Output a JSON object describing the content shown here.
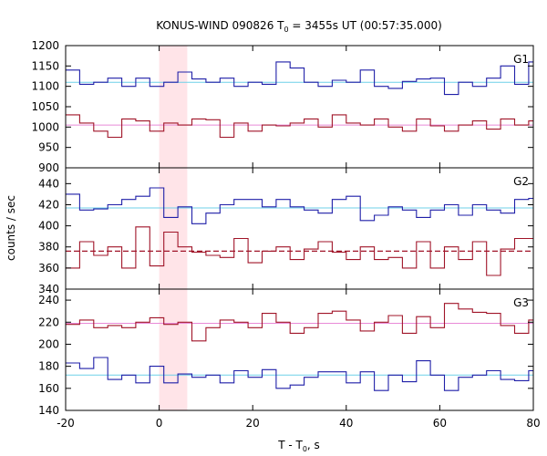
{
  "chart_data": {
    "type": "line",
    "title": "KONUS-WIND 090826 T",
    "title_sub": "0",
    "title_rest": " = 3455s UT (00:57:35.000)",
    "xlabel": "T - T",
    "xlabel_sub": "0",
    "xlabel_rest": ", s",
    "ylabel": "counts / sec",
    "xlim": [
      -20,
      80
    ],
    "x_ticks": [
      "-20",
      "0",
      "20",
      "40",
      "60",
      "80"
    ],
    "x_tick_values": [
      -20,
      0,
      20,
      40,
      60,
      80
    ],
    "highlight_band": [
      0,
      6
    ],
    "colors": {
      "blue": "#1f1fa8",
      "red": "#a01428",
      "blue_fit": "#6fd0e8",
      "red_fit": "#e88ad8",
      "band": "#ffe4e8"
    },
    "panels": [
      {
        "label": "G1",
        "ylim": [
          900,
          1200
        ],
        "y_ticks": [
          "900",
          "950",
          "1000",
          "1050",
          "1100",
          "1150",
          "1200"
        ],
        "y_tick_values": [
          900,
          950,
          1000,
          1050,
          1100,
          1150,
          1200
        ],
        "fits": [
          {
            "series": "blue",
            "value": 1110,
            "style": "solid"
          },
          {
            "series": "red",
            "value": 1005,
            "style": "solid"
          }
        ],
        "series": [
          {
            "color": "blue",
            "x": [
              -20,
              -17,
              -14,
              -11,
              -8,
              -5,
              -2,
              1,
              4,
              7,
              10,
              13,
              16,
              19,
              22,
              25,
              28,
              31,
              34,
              37,
              40,
              43,
              46,
              49,
              52,
              55,
              58,
              61,
              64,
              67,
              70,
              73,
              76,
              79,
              80
            ],
            "y": [
              1140,
              1105,
              1110,
              1120,
              1100,
              1120,
              1100,
              1110,
              1135,
              1118,
              1110,
              1120,
              1100,
              1110,
              1105,
              1160,
              1145,
              1110,
              1100,
              1115,
              1110,
              1140,
              1100,
              1095,
              1112,
              1118,
              1120,
              1080,
              1110,
              1100,
              1120,
              1150,
              1105,
              1160,
              1160
            ]
          },
          {
            "color": "red",
            "x": [
              -20,
              -17,
              -14,
              -11,
              -8,
              -5,
              -2,
              1,
              4,
              7,
              10,
              13,
              16,
              19,
              22,
              25,
              28,
              31,
              34,
              37,
              40,
              43,
              46,
              49,
              52,
              55,
              58,
              61,
              64,
              67,
              70,
              73,
              76,
              79,
              80
            ],
            "y": [
              1030,
              1010,
              990,
              975,
              1020,
              1015,
              990,
              1010,
              1005,
              1020,
              1018,
              975,
              1010,
              990,
              1005,
              1003,
              1010,
              1020,
              1000,
              1030,
              1010,
              1005,
              1020,
              1000,
              990,
              1020,
              1003,
              990,
              1005,
              1015,
              995,
              1020,
              1005,
              1015,
              1015
            ]
          }
        ]
      },
      {
        "label": "G2",
        "ylim": [
          340,
          455
        ],
        "y_ticks": [
          "340",
          "360",
          "380",
          "400",
          "420",
          "440"
        ],
        "y_tick_values": [
          340,
          360,
          380,
          400,
          420,
          440
        ],
        "fits": [
          {
            "series": "blue",
            "value": 417,
            "style": "solid"
          },
          {
            "series": "red",
            "value": 376,
            "style": "dashed"
          }
        ],
        "series": [
          {
            "color": "blue",
            "x": [
              -20,
              -17,
              -14,
              -11,
              -8,
              -5,
              -2,
              1,
              4,
              7,
              10,
              13,
              16,
              19,
              22,
              25,
              28,
              31,
              34,
              37,
              40,
              43,
              46,
              49,
              52,
              55,
              58,
              61,
              64,
              67,
              70,
              73,
              76,
              79,
              80
            ],
            "y": [
              430,
              415,
              416,
              420,
              425,
              428,
              436,
              408,
              418,
              402,
              412,
              420,
              425,
              425,
              418,
              425,
              418,
              415,
              412,
              425,
              428,
              405,
              410,
              418,
              415,
              408,
              415,
              420,
              410,
              420,
              415,
              412,
              425,
              426,
              426
            ]
          },
          {
            "color": "red",
            "x": [
              -20,
              -17,
              -14,
              -11,
              -8,
              -5,
              -2,
              1,
              4,
              7,
              10,
              13,
              16,
              19,
              22,
              25,
              28,
              31,
              34,
              37,
              40,
              43,
              46,
              49,
              52,
              55,
              58,
              61,
              64,
              67,
              70,
              73,
              76,
              79,
              80
            ],
            "y": [
              360,
              385,
              372,
              380,
              360,
              399,
              362,
              394,
              380,
              375,
              372,
              370,
              388,
              365,
              376,
              380,
              368,
              378,
              385,
              375,
              368,
              380,
              368,
              370,
              360,
              385,
              360,
              380,
              368,
              385,
              353,
              378,
              388,
              388,
              388
            ]
          }
        ]
      },
      {
        "label": "G3",
        "ylim": [
          140,
          250
        ],
        "y_ticks": [
          "140",
          "160",
          "180",
          "200",
          "220",
          "240"
        ],
        "y_tick_values": [
          140,
          160,
          180,
          200,
          220,
          240
        ],
        "fits": [
          {
            "series": "red",
            "value": 219,
            "style": "solid"
          },
          {
            "series": "blue",
            "value": 172,
            "style": "solid"
          }
        ],
        "series": [
          {
            "color": "red",
            "x": [
              -20,
              -17,
              -14,
              -11,
              -8,
              -5,
              -2,
              1,
              4,
              7,
              10,
              13,
              16,
              19,
              22,
              25,
              28,
              31,
              34,
              37,
              40,
              43,
              46,
              49,
              52,
              55,
              58,
              61,
              64,
              67,
              70,
              73,
              76,
              79,
              80
            ],
            "y": [
              218,
              222,
              215,
              217,
              215,
              220,
              224,
              218,
              220,
              203,
              215,
              222,
              220,
              215,
              228,
              220,
              210,
              215,
              228,
              230,
              222,
              212,
              220,
              226,
              210,
              225,
              215,
              237,
              232,
              229,
              228,
              217,
              210,
              222,
              222
            ]
          },
          {
            "color": "blue",
            "x": [
              -20,
              -17,
              -14,
              -11,
              -8,
              -5,
              -2,
              1,
              4,
              7,
              10,
              13,
              16,
              19,
              22,
              25,
              28,
              31,
              34,
              37,
              40,
              43,
              46,
              49,
              52,
              55,
              58,
              61,
              64,
              67,
              70,
              73,
              76,
              79,
              80
            ],
            "y": [
              183,
              178,
              188,
              168,
              172,
              165,
              180,
              165,
              173,
              170,
              172,
              165,
              176,
              170,
              177,
              160,
              163,
              170,
              175,
              175,
              165,
              175,
              158,
              172,
              166,
              185,
              172,
              158,
              170,
              172,
              176,
              168,
              167,
              176,
              176
            ]
          }
        ]
      }
    ]
  }
}
